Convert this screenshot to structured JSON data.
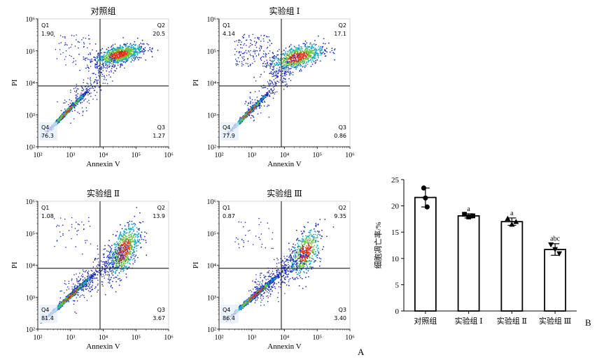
{
  "figure": {
    "label_a": "A",
    "label_b": "B"
  },
  "colors": {
    "axis": "#000000",
    "gate": "#1a1a1a",
    "dot_low": "#1f2fb5",
    "dot_mid": "#18a8c8",
    "dot_high": "#6cc03a",
    "dot_peak": "#e03a1e",
    "bar_fill": "#ffffff",
    "bar_stroke": "#000000"
  },
  "chart_data": [
    {
      "type": "scatter",
      "title": "对照组",
      "xlabel": "Annexin V",
      "ylabel": "PI",
      "x_scale": "log",
      "y_scale": "log",
      "xlim": [
        100,
        1000000
      ],
      "ylim": [
        100,
        1000000
      ],
      "x_ticks": [
        "10²",
        "10³",
        "10⁴",
        "10⁵",
        "10⁶"
      ],
      "y_ticks": [
        "10²",
        "10³",
        "10⁴",
        "10⁵",
        "10⁶"
      ],
      "gate": {
        "x": 8000,
        "y": 8000
      },
      "quadrants": [
        {
          "name": "Q1",
          "value": "1.90"
        },
        {
          "name": "Q2",
          "value": "20.5"
        },
        {
          "name": "Q3",
          "value": "1.27"
        },
        {
          "name": "Q4",
          "value": "76.3"
        }
      ]
    },
    {
      "type": "scatter",
      "title": "实验组 Ⅰ",
      "xlabel": "Annexin V",
      "ylabel": "PI",
      "x_scale": "log",
      "y_scale": "log",
      "xlim": [
        100,
        1000000
      ],
      "ylim": [
        100,
        1000000
      ],
      "x_ticks": [
        "10²",
        "10³",
        "10⁴",
        "10⁵",
        "10⁶"
      ],
      "y_ticks": [
        "10²",
        "10³",
        "10⁴",
        "10⁵",
        "10⁶"
      ],
      "gate": {
        "x": 8000,
        "y": 8000
      },
      "quadrants": [
        {
          "name": "Q1",
          "value": "4.14"
        },
        {
          "name": "Q2",
          "value": "17.1"
        },
        {
          "name": "Q3",
          "value": "0.86"
        },
        {
          "name": "Q4",
          "value": "77.9"
        }
      ]
    },
    {
      "type": "scatter",
      "title": "实验组 Ⅱ",
      "xlabel": "Annexin V",
      "ylabel": "PI",
      "x_scale": "log",
      "y_scale": "log",
      "xlim": [
        100,
        1000000
      ],
      "ylim": [
        100,
        1000000
      ],
      "x_ticks": [
        "10²",
        "10³",
        "10⁴",
        "10⁵",
        "10⁶"
      ],
      "y_ticks": [
        "10²",
        "10³",
        "10⁴",
        "10⁵",
        "10⁶"
      ],
      "gate": {
        "x": 8000,
        "y": 8000
      },
      "quadrants": [
        {
          "name": "Q1",
          "value": "1.08"
        },
        {
          "name": "Q2",
          "value": "13.9"
        },
        {
          "name": "Q3",
          "value": "3.67"
        },
        {
          "name": "Q4",
          "value": "81.4"
        }
      ]
    },
    {
      "type": "scatter",
      "title": "实验组 Ⅲ",
      "xlabel": "Annexin V",
      "ylabel": "PI",
      "x_scale": "log",
      "y_scale": "log",
      "xlim": [
        100,
        1000000
      ],
      "ylim": [
        100,
        1000000
      ],
      "x_ticks": [
        "10²",
        "10³",
        "10⁴",
        "10⁵",
        "10⁶"
      ],
      "y_ticks": [
        "10²",
        "10³",
        "10⁴",
        "10⁵",
        "10⁶"
      ],
      "gate": {
        "x": 8000,
        "y": 8000
      },
      "quadrants": [
        {
          "name": "Q1",
          "value": "0.87"
        },
        {
          "name": "Q2",
          "value": "9.35"
        },
        {
          "name": "Q3",
          "value": "3.40"
        },
        {
          "name": "Q4",
          "value": "86.4"
        }
      ]
    },
    {
      "type": "bar",
      "title": "",
      "xlabel": "",
      "ylabel": "细胞凋亡率/%",
      "ylim": [
        0,
        25
      ],
      "y_ticks": [
        0,
        5,
        10,
        15,
        20,
        25
      ],
      "categories": [
        "对照组",
        "实验组 Ⅰ",
        "实验组 Ⅱ",
        "实验组 Ⅲ"
      ],
      "values": [
        21.6,
        18.1,
        17.0,
        11.7
      ],
      "error": [
        1.8,
        0.4,
        0.7,
        1.1
      ],
      "points": [
        [
          23.4,
          21.5,
          19.8
        ],
        [
          18.4,
          17.9,
          18.1
        ],
        [
          17.6,
          16.5,
          17.0
        ],
        [
          12.6,
          11.7,
          10.9
        ]
      ],
      "markers": [
        "circle",
        "square",
        "triangle-up",
        "triangle-down"
      ],
      "annotations": [
        "",
        "a",
        "a",
        "abc"
      ]
    }
  ]
}
